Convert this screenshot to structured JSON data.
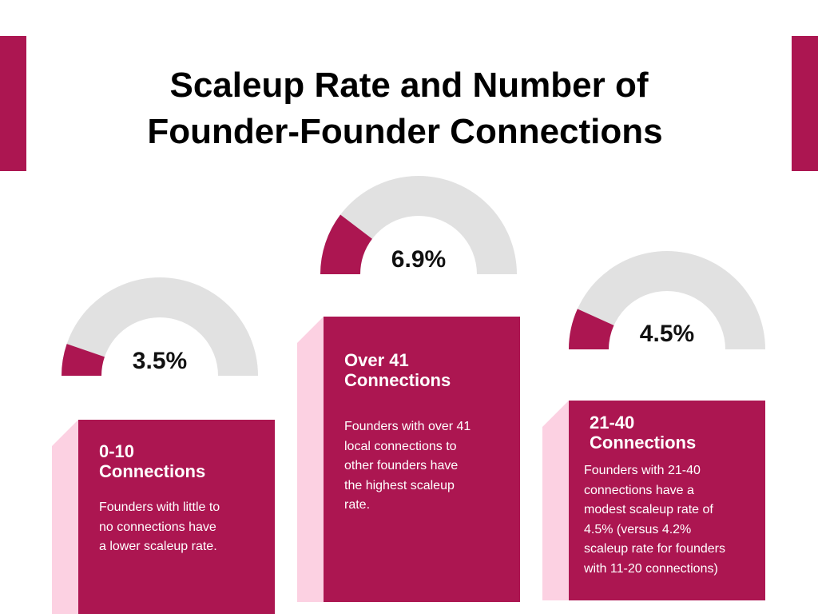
{
  "title": {
    "line1": "Scaleup Rate and Number of",
    "line2": "Founder-Founder Connections"
  },
  "colors": {
    "accent": "#ac1651",
    "track": "#e1e1e1",
    "side_panel": "#fcd1e2",
    "text": "#000000"
  },
  "chart_data": {
    "type": "gauge",
    "title": "Scaleup Rate and Number of Founder-Founder Connections",
    "unit": "%",
    "categories": [
      "0-10 Connections",
      "Over 41 Connections",
      "21-40 Connections"
    ],
    "values": [
      3.5,
      6.9,
      4.5
    ],
    "value_labels": [
      "3.5%",
      "6.9%",
      "4.5%"
    ],
    "items": [
      {
        "heading_line1": "0-10",
        "heading_line2": "Connections",
        "value": 3.5,
        "value_label": "3.5%",
        "description_lines": [
          "Founders with little to",
          "no connections have",
          "a lower scaleup rate."
        ]
      },
      {
        "heading_line1": "Over 41",
        "heading_line2": "Connections",
        "value": 6.9,
        "value_label": "6.9%",
        "description_lines": [
          "Founders with over 41",
          "local connections to",
          "other founders have",
          "the highest scaleup",
          "rate."
        ]
      },
      {
        "heading_line1": "21-40",
        "heading_line2": "Connections",
        "value": 4.5,
        "value_label": "4.5%",
        "description_lines": [
          "Founders with 21-40",
          "connections have a",
          "modest scaleup rate of",
          "4.5% (versus 4.2%",
          "scaleup rate for founders",
          "with 11-20 connections)"
        ]
      }
    ]
  }
}
